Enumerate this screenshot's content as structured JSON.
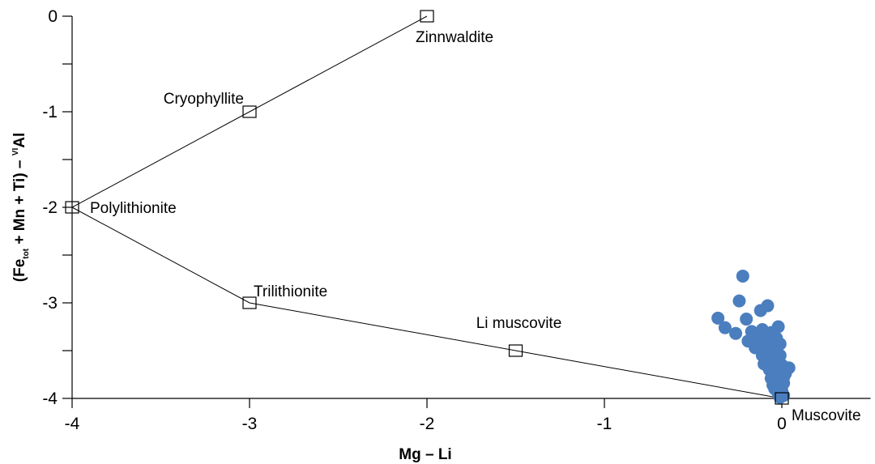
{
  "chart_data": {
    "type": "scatter",
    "title": "",
    "xlabel": "Mg – Li",
    "ylabel": {
      "prefix": "(Fe",
      "sub": "tot",
      "middle": " + Mn + Ti) – ",
      "sup": "VI",
      "suffix": "Al"
    },
    "xlim": [
      -4,
      0.5
    ],
    "ylim": [
      -4,
      0
    ],
    "x_ticks": [
      {
        "value": -4,
        "label": "-4"
      },
      {
        "value": -3,
        "label": "-3"
      },
      {
        "value": -2,
        "label": "-2"
      },
      {
        "value": -1,
        "label": "-1"
      },
      {
        "value": 0,
        "label": "0"
      }
    ],
    "y_ticks": [
      {
        "value": 0,
        "label": "0"
      },
      {
        "value": -1,
        "label": "-1"
      },
      {
        "value": -2,
        "label": "-2"
      },
      {
        "value": -3,
        "label": "-3"
      },
      {
        "value": -4,
        "label": "-4"
      }
    ],
    "y_minor_ticks": [
      -0.5,
      -1.5,
      -2.5,
      -3.5
    ],
    "grid": false,
    "legend": "none",
    "reference_points": [
      {
        "name": "Zinnwaldite",
        "x": -2,
        "y": 0,
        "label_pos": "below-right"
      },
      {
        "name": "Cryophyllite",
        "x": -3,
        "y": -1,
        "label_pos": "above-left"
      },
      {
        "name": "Polylithionite",
        "x": -4,
        "y": -2,
        "label_pos": "right"
      },
      {
        "name": "Trilithionite",
        "x": -3,
        "y": -3,
        "label_pos": "above-right"
      },
      {
        "name": "Li muscovite",
        "x": -1.5,
        "y": -3.5,
        "label_pos": "above"
      },
      {
        "name": "Muscovite",
        "x": 0,
        "y": -4,
        "label_pos": "below-right"
      }
    ],
    "reference_lines": [
      [
        "Polylithionite",
        "Cryophyllite",
        "Zinnwaldite"
      ],
      [
        "Polylithionite",
        "Trilithionite",
        "Li muscovite",
        "Muscovite"
      ]
    ],
    "series": [
      {
        "color": "#4a7ebf",
        "points": [
          [
            -0.22,
            -2.72
          ],
          [
            -0.24,
            -2.98
          ],
          [
            -0.08,
            -3.03
          ],
          [
            -0.12,
            -3.08
          ],
          [
            -0.36,
            -3.16
          ],
          [
            -0.2,
            -3.17
          ],
          [
            -0.02,
            -3.25
          ],
          [
            -0.32,
            -3.26
          ],
          [
            -0.26,
            -3.32
          ],
          [
            -0.17,
            -3.3
          ],
          [
            -0.11,
            -3.28
          ],
          [
            -0.06,
            -3.31
          ],
          [
            -0.14,
            -3.36
          ],
          [
            -0.09,
            -3.38
          ],
          [
            -0.03,
            -3.37
          ],
          [
            -0.19,
            -3.4
          ],
          [
            -0.12,
            -3.44
          ],
          [
            -0.06,
            -3.45
          ],
          [
            -0.01,
            -3.43
          ],
          [
            -0.15,
            -3.47
          ],
          [
            -0.09,
            -3.5
          ],
          [
            -0.04,
            -3.52
          ],
          [
            -0.11,
            -3.55
          ],
          [
            -0.06,
            -3.57
          ],
          [
            -0.01,
            -3.55
          ],
          [
            -0.08,
            -3.6
          ],
          [
            -0.03,
            -3.62
          ],
          [
            -0.1,
            -3.64
          ],
          [
            -0.05,
            -3.66
          ],
          [
            0.0,
            -3.65
          ],
          [
            0.04,
            -3.68
          ],
          [
            -0.07,
            -3.7
          ],
          [
            -0.02,
            -3.72
          ],
          [
            0.02,
            -3.74
          ],
          [
            -0.04,
            -3.76
          ],
          [
            0.01,
            -3.78
          ],
          [
            -0.06,
            -3.79
          ],
          [
            -0.03,
            -3.82
          ],
          [
            0.01,
            -3.84
          ],
          [
            -0.05,
            -3.86
          ],
          [
            -0.01,
            -3.88
          ],
          [
            -0.04,
            -3.9
          ],
          [
            0.0,
            -3.92
          ],
          [
            -0.02,
            -3.95
          ],
          [
            0.01,
            -3.97
          ],
          [
            -0.01,
            -3.99
          ],
          [
            -0.07,
            -3.46
          ],
          [
            -0.13,
            -3.4
          ],
          [
            -0.05,
            -3.48
          ],
          [
            -0.02,
            -3.58
          ]
        ]
      }
    ]
  }
}
